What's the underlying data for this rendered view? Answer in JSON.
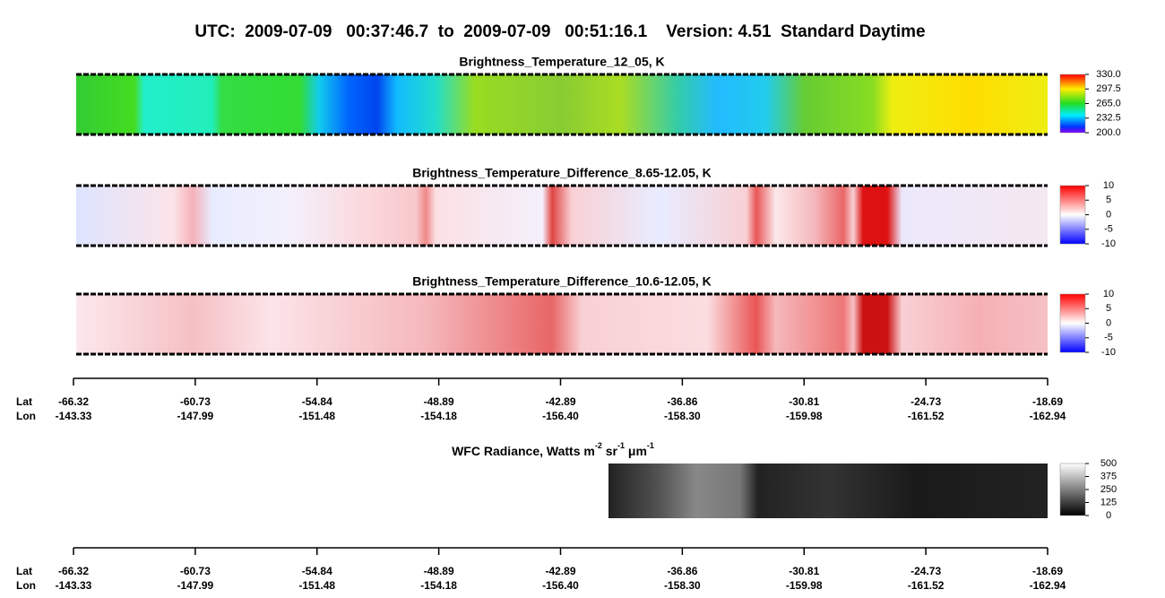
{
  "title": "UTC:  2009-07-09   00:37:46.7  to  2009-07-09   00:51:16.1    Version: 4.51  Standard Daytime",
  "panels": [
    {
      "title": "Brightness_Temperature_12_05, K",
      "colorbar_ticks": [
        {
          "value": 200,
          "label": "200.0"
        },
        {
          "value": 232.5,
          "label": "232.5"
        },
        {
          "value": 265,
          "label": "265.0"
        },
        {
          "value": 297.5,
          "label": "297.5"
        },
        {
          "value": 330,
          "label": "330.0"
        }
      ]
    },
    {
      "title": "Brightness_Temperature_Difference_8.65-12.05, K",
      "colorbar_ticks": [
        -10,
        -5,
        0,
        5,
        10
      ]
    },
    {
      "title": "Brightness_Temperature_Difference_10.6-12.05, K",
      "colorbar_ticks": [
        -10,
        -5,
        0,
        5,
        10
      ]
    }
  ],
  "axis": {
    "lat_label": "Lat",
    "lon_label": "Lon",
    "ticks": [
      {
        "lat": -66.32,
        "lon": -143.33
      },
      {
        "lat": -60.73,
        "lon": -147.99
      },
      {
        "lat": -54.84,
        "lon": -151.48
      },
      {
        "lat": -48.89,
        "lon": -154.18
      },
      {
        "lat": -42.89,
        "lon": {
          "value": -156.4,
          "label": "-156.40"
        }
      },
      {
        "lat": -36.86,
        "lon": {
          "value": -158.3,
          "label": "-158.30"
        }
      },
      {
        "lat": -30.81,
        "lon": -159.98
      },
      {
        "lat": -24.73,
        "lon": -161.52
      },
      {
        "lat": -18.69,
        "lon": -162.94
      }
    ]
  },
  "wfc": {
    "title_parts": [
      "WFC Radiance, Watts m",
      "-2",
      " sr",
      "-1",
      " μm",
      "-1"
    ],
    "colorbar_ticks": [
      0,
      125,
      250,
      375,
      500
    ]
  }
}
